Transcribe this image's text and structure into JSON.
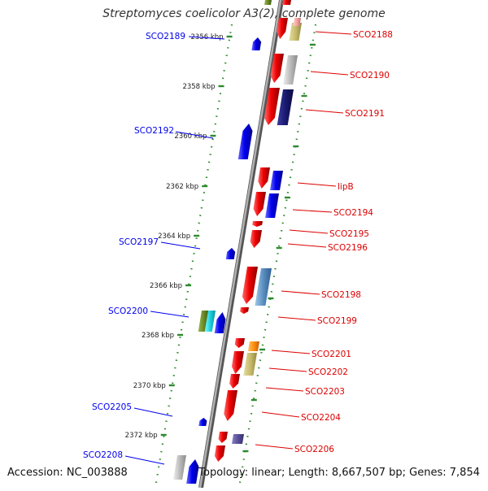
{
  "title": "Streptomyces coelicolor A3(2), complete genome",
  "accession_text": "Accession: NC_003888",
  "stats_text": "Topology: linear; Length: 8,667,507 bp; Genes: 7,854",
  "colors": {
    "forward": "#0000ee",
    "reverse": "#dd0000",
    "ruler": "#2e8b2e",
    "axis": "#888888"
  },
  "ticks": [
    {
      "label": "2356 kbp"
    },
    {
      "label": "2358 kbp"
    },
    {
      "label": "2360 kbp"
    },
    {
      "label": "2362 kbp"
    },
    {
      "label": "2364 kbp"
    },
    {
      "label": "2366 kbp"
    },
    {
      "label": "2368 kbp"
    },
    {
      "label": "2370 kbp"
    },
    {
      "label": "2372 kbp"
    }
  ],
  "left_labels": [
    {
      "text": "SCO2189"
    },
    {
      "text": "SCO2192"
    },
    {
      "text": "SCO2197"
    },
    {
      "text": "SCO2200"
    },
    {
      "text": "SCO2205"
    },
    {
      "text": "SCO2208"
    }
  ],
  "right_labels": [
    {
      "text": "SCO2188"
    },
    {
      "text": "SCO2190"
    },
    {
      "text": "SCO2191"
    },
    {
      "text": "lipB"
    },
    {
      "text": "SCO2194"
    },
    {
      "text": "SCO2195"
    },
    {
      "text": "SCO2196"
    },
    {
      "text": "SCO2198"
    },
    {
      "text": "SCO2199"
    },
    {
      "text": "SCO2201"
    },
    {
      "text": "SCO2202"
    },
    {
      "text": "SCO2203"
    },
    {
      "text": "SCO2204"
    },
    {
      "text": "SCO2206"
    }
  ]
}
